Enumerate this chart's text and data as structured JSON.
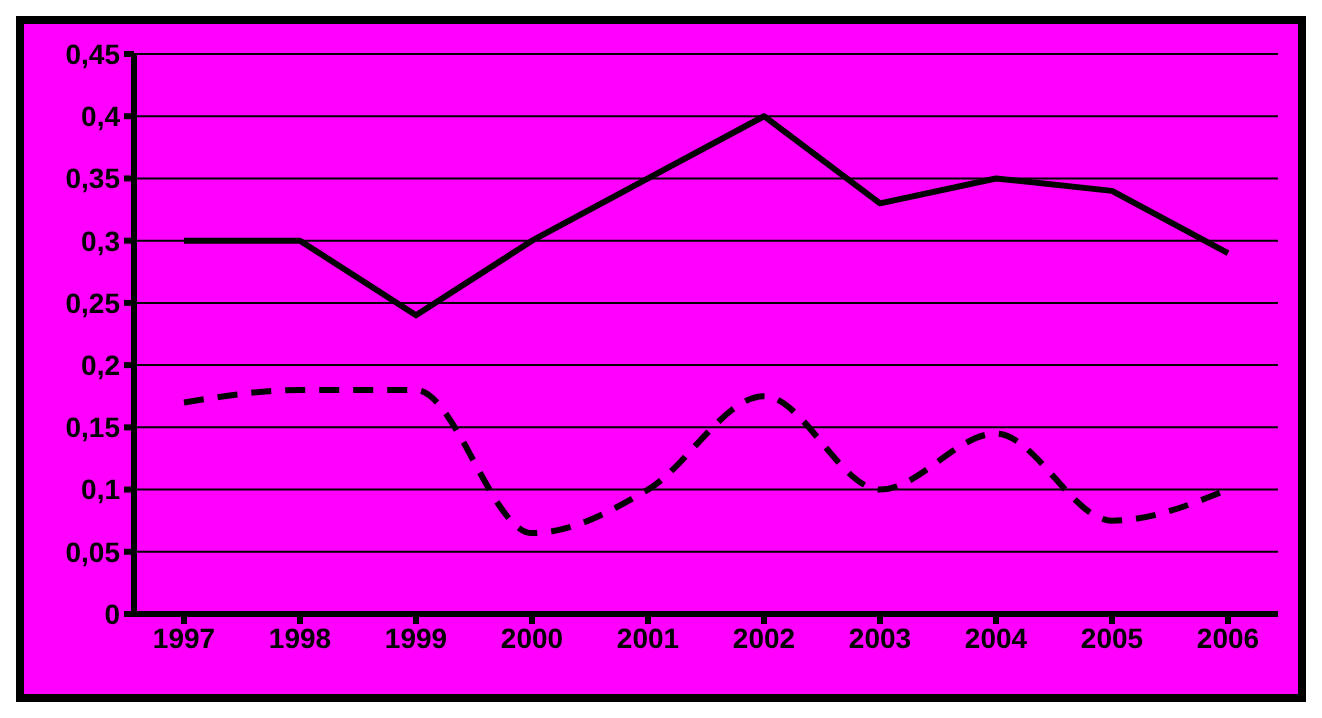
{
  "chart_data": {
    "type": "line",
    "categories": [
      "1997",
      "1998",
      "1999",
      "2000",
      "2001",
      "2002",
      "2003",
      "2004",
      "2005",
      "2006"
    ],
    "series": [
      {
        "color": "#000000",
        "line_style": "solid",
        "values": [
          0.3,
          0.3,
          0.24,
          0.3,
          0.35,
          0.4,
          0.33,
          0.35,
          0.34,
          0.29
        ]
      },
      {
        "color": "#000000",
        "line_style": "dashed",
        "values": [
          0.17,
          0.18,
          0.18,
          0.065,
          0.1,
          0.175,
          0.1,
          0.145,
          0.075,
          0.1
        ]
      }
    ],
    "ylim": [
      0,
      0.45
    ],
    "yticks": [
      {
        "value": 0,
        "label": "0"
      },
      {
        "value": 0.05,
        "label": "0,05"
      },
      {
        "value": 0.1,
        "label": "0,1"
      },
      {
        "value": 0.15,
        "label": "0,15"
      },
      {
        "value": 0.2,
        "label": "0,2"
      },
      {
        "value": 0.25,
        "label": "0,25"
      },
      {
        "value": 0.3,
        "label": "0,3"
      },
      {
        "value": 0.35,
        "label": "0,35"
      },
      {
        "value": 0.4,
        "label": "0,4"
      },
      {
        "value": 0.45,
        "label": "0,45"
      }
    ],
    "grid": "y",
    "legend": false,
    "marker": "none"
  }
}
